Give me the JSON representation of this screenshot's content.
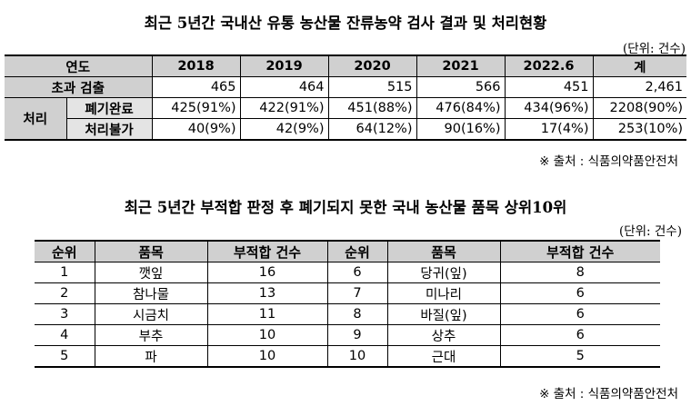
{
  "table1": {
    "title": "최근 5년간 국내산 유통 농산물 잔류농약 검사 결과 및 처리현황",
    "unit": "(단위: 건수)",
    "header": [
      "연도",
      "2018",
      "2019",
      "2020",
      "2021",
      "2022.6",
      "계"
    ],
    "exceed": {
      "label": "초과 검출",
      "values": [
        "465",
        "464",
        "515",
        "566",
        "451",
        "2,461"
      ]
    },
    "group_label": "처리",
    "disposed": {
      "label": "폐기완료",
      "values": [
        "425(91%)",
        "422(91%)",
        "451(88%)",
        "476(84%)",
        "434(96%)",
        "2208(90%)"
      ]
    },
    "undisposable": {
      "label": "처리불가",
      "values": [
        "40(9%)",
        "42(9%)",
        "64(12%)",
        "90(16%)",
        "17(4%)",
        "253(10%)"
      ]
    },
    "source": "※ 출처 : 식품의약품안전처"
  },
  "table2": {
    "title": "최근 5년간 부적합 판정 후 폐기되지 못한 국내 농산물 품목 상위10위",
    "unit": "(단위: 건수)",
    "header": [
      "순위",
      "품목",
      "부적합 건수",
      "순위",
      "품목",
      "부적합 건수"
    ],
    "rows": [
      [
        "1",
        "깻잎",
        "16",
        "6",
        "당귀(잎)",
        "8"
      ],
      [
        "2",
        "참나물",
        "13",
        "7",
        "미나리",
        "6"
      ],
      [
        "3",
        "시금치",
        "11",
        "8",
        "바질(잎)",
        "6"
      ],
      [
        "4",
        "부추",
        "10",
        "9",
        "상추",
        "6"
      ],
      [
        "5",
        "파",
        "10",
        "10",
        "근대",
        "5"
      ]
    ],
    "source": "※ 출처 : 식품의약품안전처"
  }
}
